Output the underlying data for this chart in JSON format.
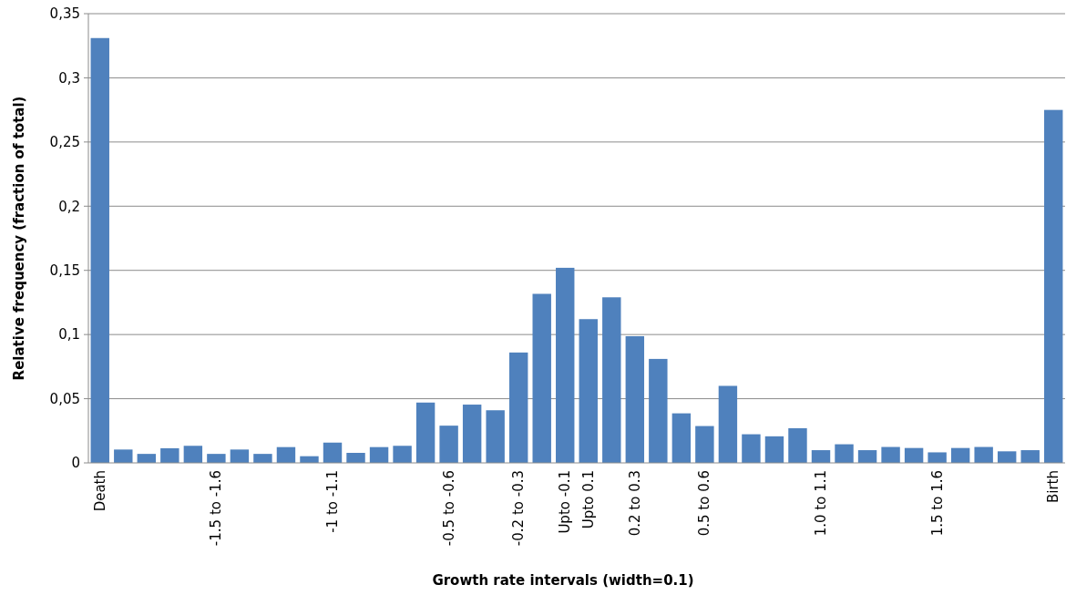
{
  "chart_data": {
    "type": "bar",
    "xlabel": "Growth rate intervals (width=0.1)",
    "ylabel": "Relative frequency (fraction of total)",
    "categories": [
      "Death",
      null,
      null,
      null,
      null,
      "-1.5 to -1.6",
      null,
      null,
      null,
      null,
      "-1 to -1.1",
      null,
      null,
      null,
      null,
      "-0.5 to -0.6",
      null,
      null,
      "-0.2 to -0.3",
      null,
      "Upto -0.1",
      "Upto 0.1",
      null,
      "0.2 to 0.3",
      null,
      null,
      "0.5 to 0.6",
      null,
      null,
      null,
      null,
      "1.0 to 1.1",
      null,
      null,
      null,
      null,
      "1.5 to 1.6",
      null,
      null,
      null,
      null,
      "Birth"
    ],
    "values": [
      0.331,
      0.0104,
      0.007,
      0.0114,
      0.0133,
      0.007,
      0.0104,
      0.007,
      0.0123,
      0.0052,
      0.0158,
      0.0078,
      0.0123,
      0.0133,
      0.047,
      0.029,
      0.0454,
      0.041,
      0.086,
      0.1317,
      0.152,
      0.112,
      0.129,
      0.0987,
      0.081,
      0.0386,
      0.0287,
      0.06,
      0.0223,
      0.0207,
      0.027,
      0.0099,
      0.0145,
      0.0099,
      0.0124,
      0.0116,
      0.0082,
      0.0116,
      0.0124,
      0.009,
      0.0099,
      0.275
    ],
    "color": "#4f81bd",
    "ylim": [
      0,
      0.35
    ],
    "yticks": [
      0,
      {
        "value": 0.05,
        "label": "0,05"
      },
      {
        "value": 0.1,
        "label": "0,1"
      },
      {
        "value": 0.15,
        "label": "0,15"
      },
      {
        "value": 0.2,
        "label": "0,2"
      },
      {
        "value": 0.25,
        "label": "0,25"
      },
      {
        "value": 0.3,
        "label": "0,3"
      },
      {
        "value": 0.35,
        "label": "0,35"
      }
    ],
    "grid": "y"
  }
}
